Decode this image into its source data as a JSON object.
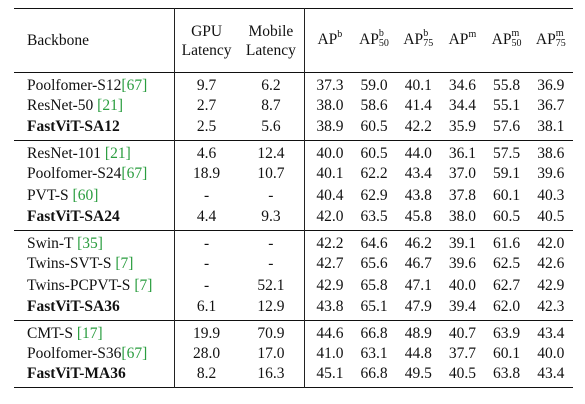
{
  "header": {
    "backbone": "Backbone",
    "gpu": [
      "GPU",
      "Latency"
    ],
    "mobile": [
      "Mobile",
      "Latency"
    ],
    "ap_cols": [
      {
        "base": "AP",
        "sup": "b",
        "sub": ""
      },
      {
        "base": "AP",
        "sup": "b",
        "sub": "50"
      },
      {
        "base": "AP",
        "sup": "b",
        "sub": "75"
      },
      {
        "base": "AP",
        "sup": "m",
        "sub": ""
      },
      {
        "base": "AP",
        "sup": "m",
        "sub": "50"
      },
      {
        "base": "AP",
        "sup": "m",
        "sub": "75"
      }
    ]
  },
  "groups": [
    [
      {
        "name": "Poolfomer-S12",
        "cite": "[67]",
        "cite_space": false,
        "gpu": "9.7",
        "mobile": "6.2",
        "ap": [
          "37.3",
          "59.0",
          "40.1",
          "34.6",
          "55.8",
          "36.9"
        ],
        "bold_name": false,
        "bold_cols": []
      },
      {
        "name": "ResNet-50",
        "cite": "[21]",
        "cite_space": true,
        "gpu": "2.7",
        "mobile": "8.7",
        "ap": [
          "38.0",
          "58.6",
          "41.4",
          "34.4",
          "55.1",
          "36.7"
        ],
        "bold_name": false,
        "bold_cols": []
      },
      {
        "name": "FastViT-SA12",
        "cite": "",
        "cite_space": false,
        "gpu": "2.5",
        "mobile": "5.6",
        "ap": [
          "38.9",
          "60.5",
          "42.2",
          "35.9",
          "57.6",
          "38.1"
        ],
        "bold_name": true,
        "bold_cols": [
          0,
          1,
          2,
          3,
          4,
          5,
          6,
          7
        ]
      }
    ],
    [
      {
        "name": "ResNet-101",
        "cite": "[21]",
        "cite_space": true,
        "gpu": "4.6",
        "mobile": "12.4",
        "ap": [
          "40.0",
          "60.5",
          "44.0",
          "36.1",
          "57.5",
          "38.6"
        ],
        "bold_name": false,
        "bold_cols": []
      },
      {
        "name": "Poolfomer-S24",
        "cite": "[67]",
        "cite_space": false,
        "gpu": "18.9",
        "mobile": "10.7",
        "ap": [
          "40.1",
          "62.2",
          "43.4",
          "37.0",
          "59.1",
          "39.6"
        ],
        "bold_name": false,
        "bold_cols": []
      },
      {
        "name": "PVT-S",
        "cite": "[60]",
        "cite_space": true,
        "gpu": "-",
        "mobile": "-",
        "ap": [
          "40.4",
          "62.9",
          "43.8",
          "37.8",
          "60.1",
          "40.3"
        ],
        "bold_name": false,
        "bold_cols": []
      },
      {
        "name": "FastViT-SA24",
        "cite": "",
        "cite_space": false,
        "gpu": "4.4",
        "mobile": "9.3",
        "ap": [
          "42.0",
          "63.5",
          "45.8",
          "38.0",
          "60.5",
          "40.5"
        ],
        "bold_name": true,
        "bold_cols": [
          0,
          1,
          2,
          3,
          4,
          5,
          6,
          7
        ]
      }
    ],
    [
      {
        "name": "Swin-T",
        "cite": "[35]",
        "cite_space": true,
        "gpu": "-",
        "mobile": "-",
        "ap": [
          "42.2",
          "64.6",
          "46.2",
          "39.1",
          "61.6",
          "42.0"
        ],
        "bold_name": false,
        "bold_cols": []
      },
      {
        "name": "Twins-SVT-S",
        "cite": "[7]",
        "cite_space": true,
        "gpu": "-",
        "mobile": "-",
        "ap": [
          "42.7",
          "65.6",
          "46.7",
          "39.6",
          "62.5",
          "42.6"
        ],
        "bold_name": false,
        "bold_cols": []
      },
      {
        "name": "Twins-PCPVT-S",
        "cite": "[7]",
        "cite_space": true,
        "gpu": "-",
        "mobile": "52.1",
        "ap": [
          "42.9",
          "65.8",
          "47.1",
          "40.0",
          "62.7",
          "42.9"
        ],
        "bold_name": false,
        "bold_cols": []
      },
      {
        "name": "FastViT-SA36",
        "cite": "",
        "cite_space": false,
        "gpu": "6.1",
        "mobile": "12.9",
        "ap": [
          "43.8",
          "65.1",
          "47.9",
          "39.4",
          "62.0",
          "42.3"
        ],
        "bold_name": true,
        "bold_cols": [
          0,
          1,
          2,
          3,
          4,
          5,
          6,
          7
        ]
      }
    ],
    [
      {
        "name": "CMT-S",
        "cite": "[17]",
        "cite_space": true,
        "gpu": "19.9",
        "mobile": "70.9",
        "ap": [
          "44.6",
          "66.8",
          "48.9",
          "40.7",
          "63.9",
          "43.4"
        ],
        "bold_name": false,
        "bold_cols": [
          3,
          5,
          6,
          7
        ]
      },
      {
        "name": "Poolfomer-S36",
        "cite": "[67]",
        "cite_space": false,
        "gpu": "28.0",
        "mobile": "17.0",
        "ap": [
          "41.0",
          "63.1",
          "44.8",
          "37.7",
          "60.1",
          "40.0"
        ],
        "bold_name": false,
        "bold_cols": []
      },
      {
        "name": "FastViT-MA36",
        "cite": "",
        "cite_space": false,
        "gpu": "8.2",
        "mobile": "16.3",
        "ap": [
          "45.1",
          "66.8",
          "49.5",
          "40.5",
          "63.8",
          "43.4"
        ],
        "bold_name": true,
        "bold_cols": [
          0,
          1,
          2,
          3,
          4,
          7
        ]
      }
    ]
  ]
}
